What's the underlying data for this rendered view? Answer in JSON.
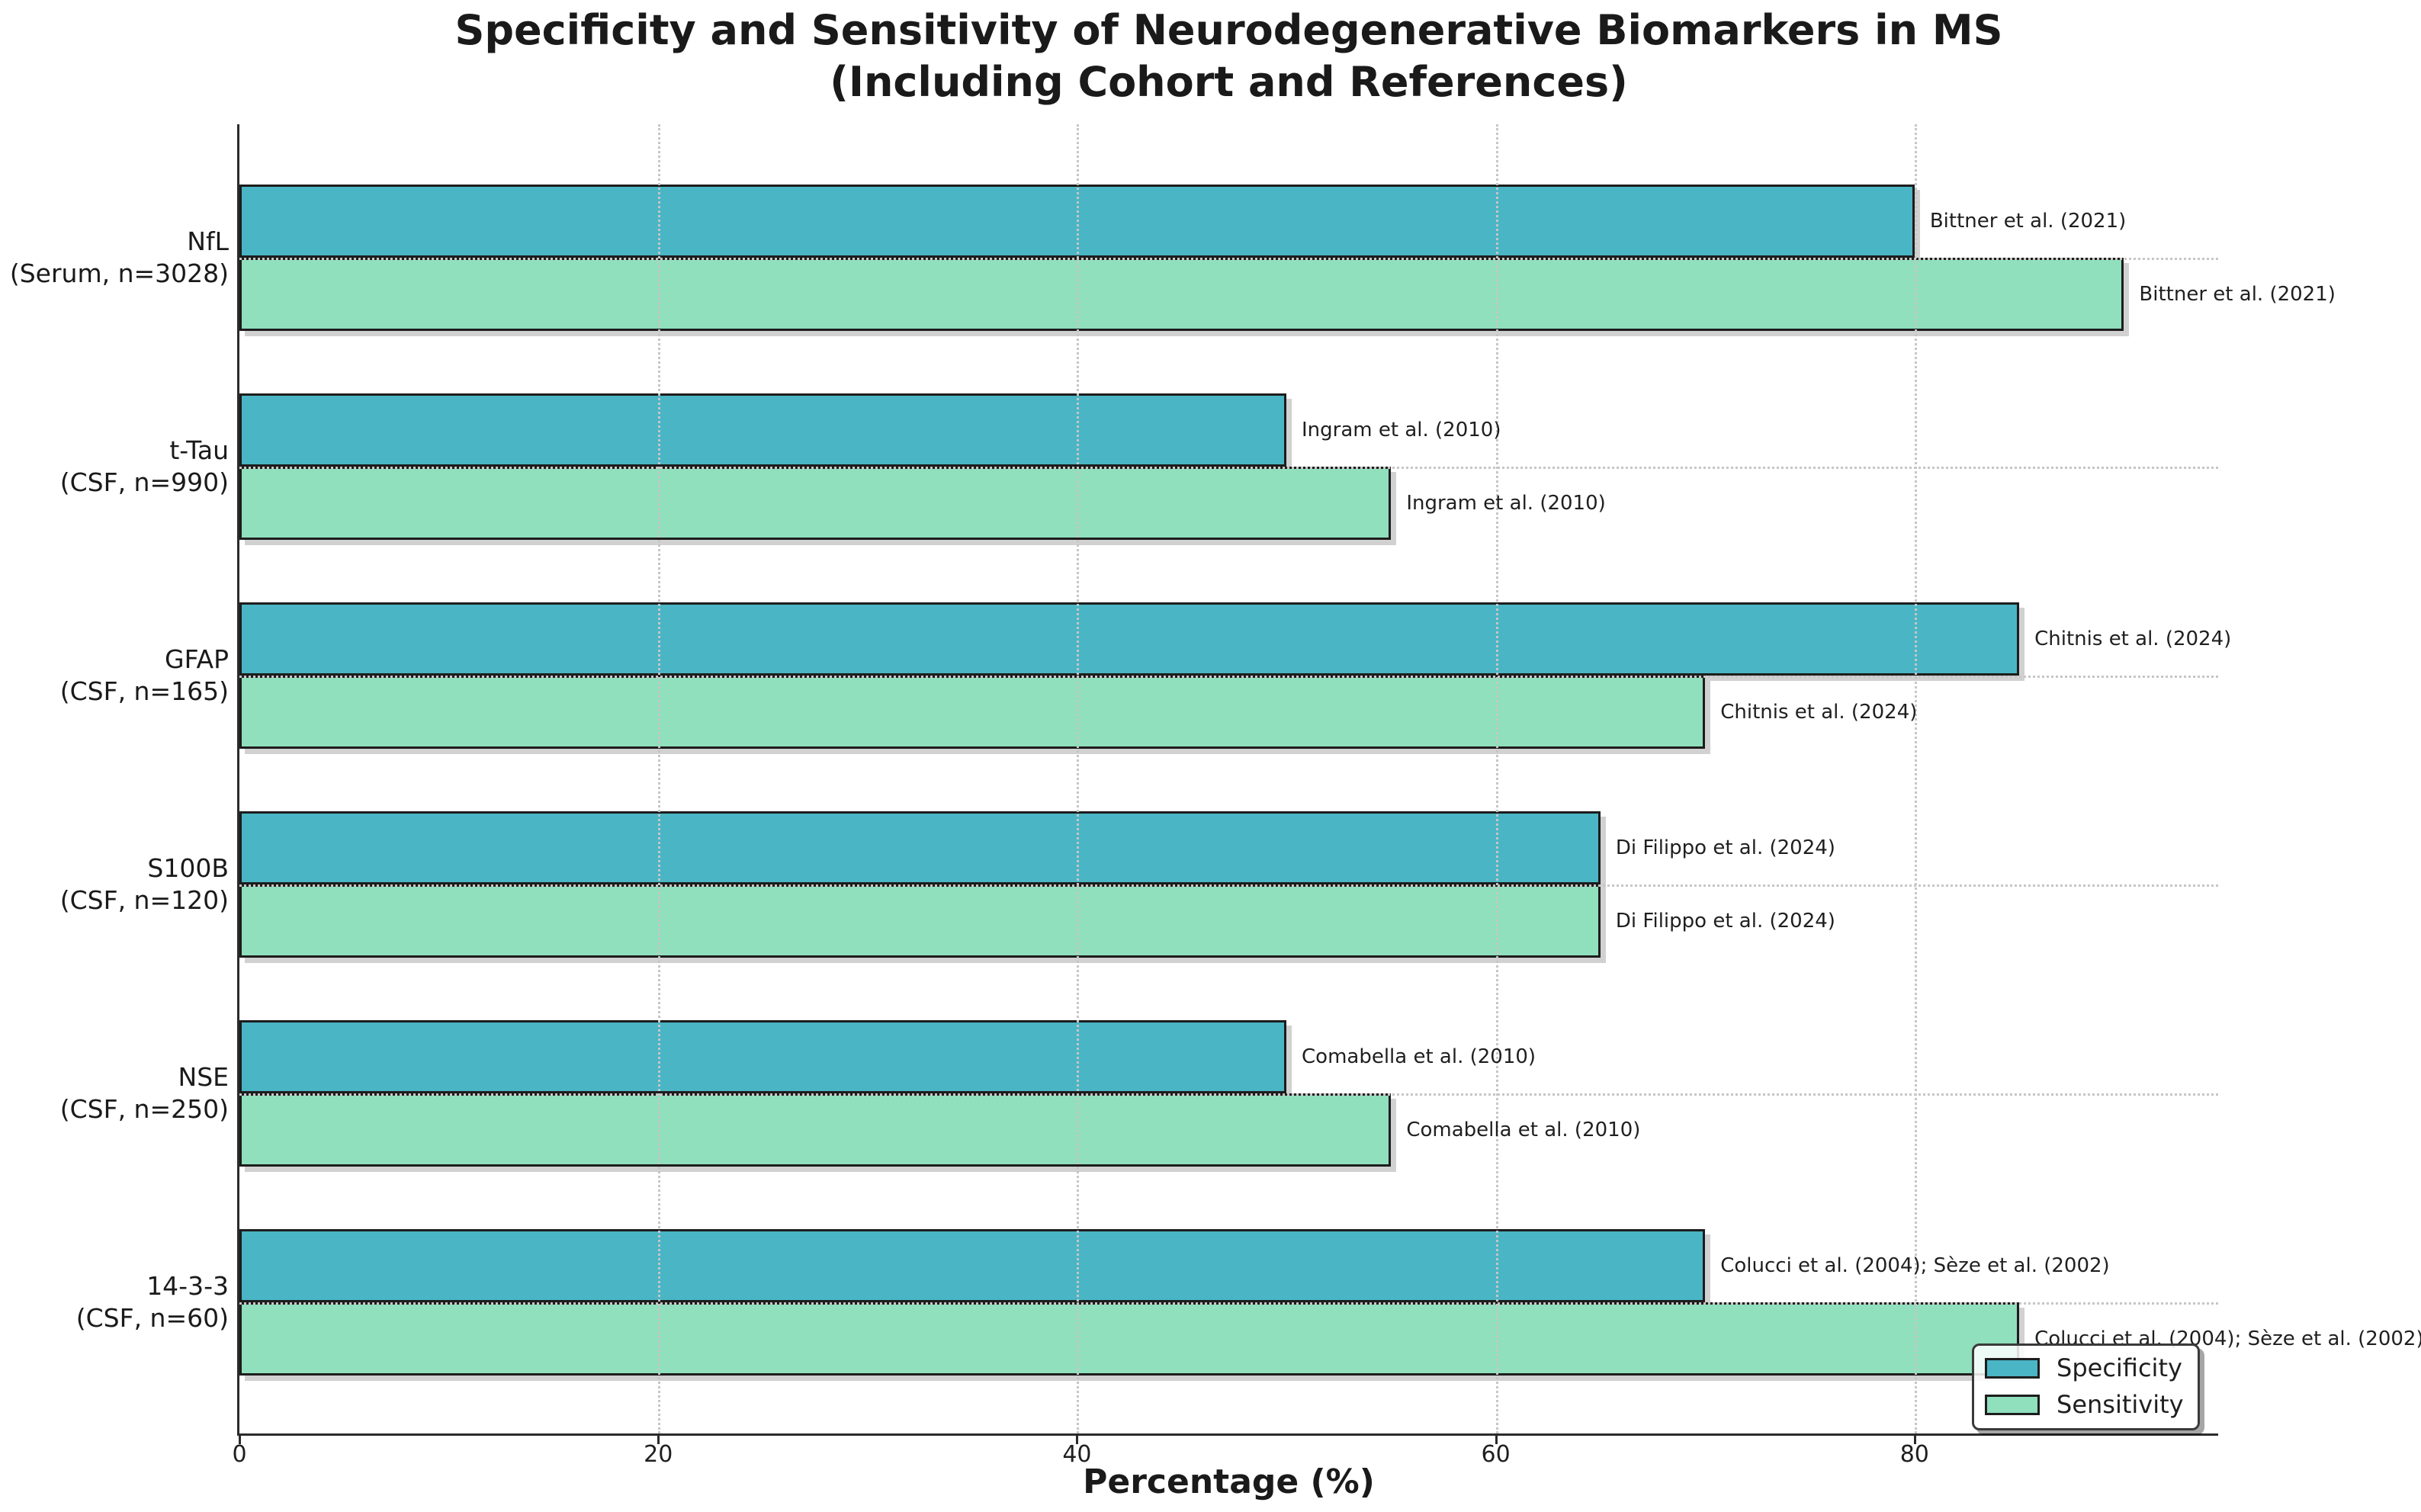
{
  "title": {
    "line1": "Specificity and Sensitivity of Neurodegenerative Biomarkers in MS",
    "line2": "(Including Cohort and References)"
  },
  "x_axis": {
    "label": "Percentage (%)",
    "tick_labels": [
      "0",
      "20",
      "40",
      "60",
      "80"
    ]
  },
  "legend": {
    "specificity_label": "Specificity",
    "sensitivity_label": "Sensitivity"
  },
  "colors": {
    "specificity": "#4ab5c4",
    "sensitivity": "#90dfbd",
    "bar_edge": "#1d1d1d",
    "grid": "#c6c6c6",
    "text": "#1a1a1a"
  },
  "chart_data": {
    "type": "bar",
    "orientation": "horizontal",
    "title": "Specificity and Sensitivity of Neurodegenerative Biomarkers in MS (Including Cohort and References)",
    "xlabel": "Percentage (%)",
    "xlim": [
      0,
      94.5
    ],
    "x_ticks": [
      0,
      20,
      40,
      60,
      80
    ],
    "grid": true,
    "legend_position": "lower right",
    "categories": [
      {
        "name": "NfL",
        "cohort": "(Serum, n=3028)",
        "specificity": 80,
        "sensitivity": 90,
        "reference": "Bittner et al. (2021)"
      },
      {
        "name": "t-Tau",
        "cohort": "(CSF, n=990)",
        "specificity": 50,
        "sensitivity": 55,
        "reference": "Ingram et al. (2010)"
      },
      {
        "name": "GFAP",
        "cohort": "(CSF, n=165)",
        "specificity": 85,
        "sensitivity": 70,
        "reference": "Chitnis et al. (2024)"
      },
      {
        "name": "S100B",
        "cohort": "(CSF, n=120)",
        "specificity": 65,
        "sensitivity": 65,
        "reference": "Di Filippo et al. (2024)"
      },
      {
        "name": "NSE",
        "cohort": "(CSF, n=250)",
        "specificity": 50,
        "sensitivity": 55,
        "reference": "Comabella et al. (2010)"
      },
      {
        "name": "14-3-3",
        "cohort": "(CSF, n=60)",
        "specificity": 70,
        "sensitivity": 85,
        "reference": "Colucci et al. (2004); Sèze et al. (2002)"
      }
    ],
    "series": [
      {
        "name": "Specificity",
        "color": "#4ab5c4",
        "values": [
          80,
          50,
          85,
          65,
          50,
          70
        ]
      },
      {
        "name": "Sensitivity",
        "color": "#90dfbd",
        "values": [
          90,
          55,
          70,
          65,
          55,
          85
        ]
      }
    ]
  }
}
